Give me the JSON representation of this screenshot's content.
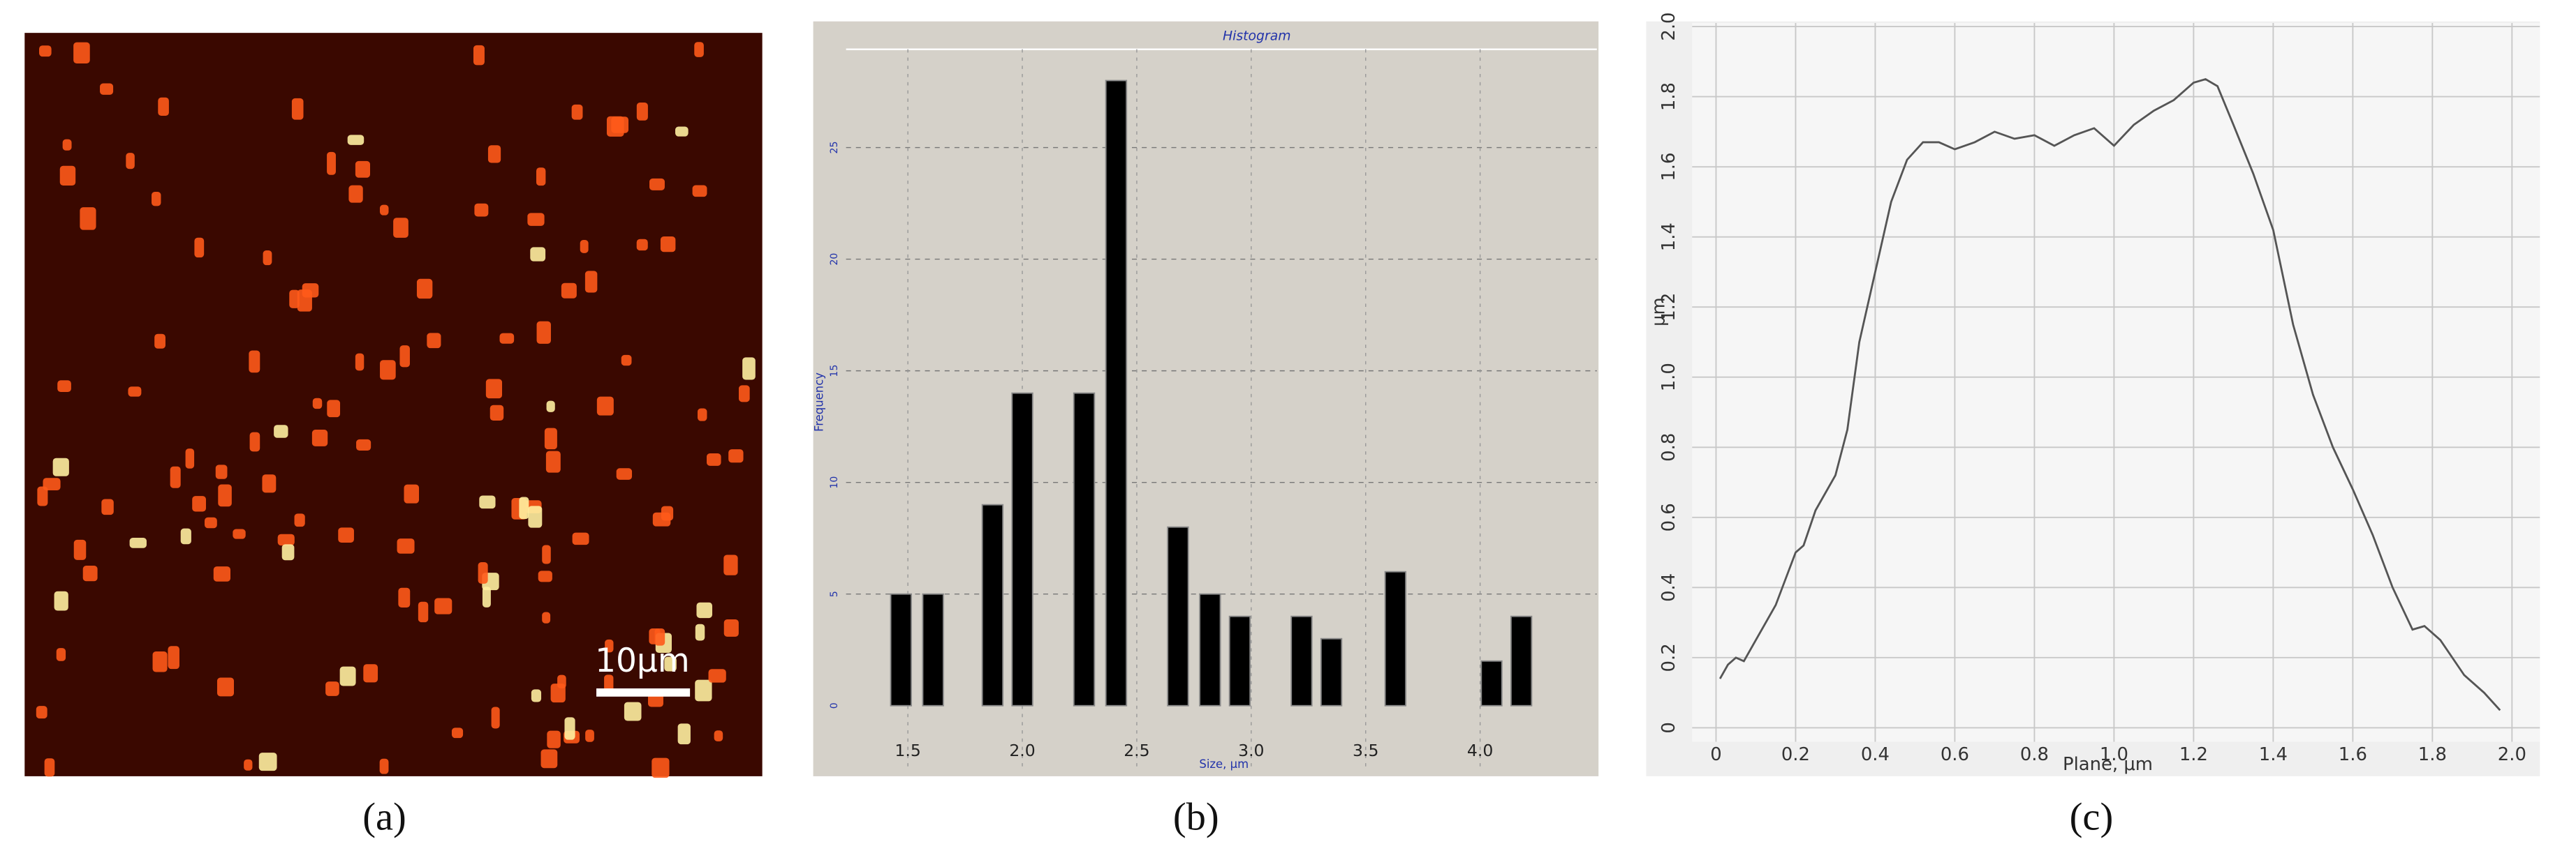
{
  "panels": {
    "a": {
      "label": "(a)",
      "scale_bar": "10μm"
    },
    "b": {
      "label": "(b)"
    },
    "c": {
      "label": "(c)"
    }
  },
  "chart_data": [
    {
      "type": "bar",
      "title": "Histogram",
      "ylabel": "Frequency",
      "xlabel": "Size, μm",
      "color": "#000000",
      "x": [
        1.47,
        1.61,
        1.87,
        2.0,
        2.27,
        2.41,
        2.68,
        2.82,
        2.95,
        3.22,
        3.35,
        3.63,
        4.05,
        4.18
      ],
      "values": [
        5,
        5,
        9,
        14,
        14,
        28,
        8,
        5,
        4,
        4,
        3,
        6,
        2,
        4
      ],
      "xlim": [
        1.23,
        4.51
      ],
      "ylim": [
        0,
        29.4
      ],
      "xticks": [
        1.5,
        {
          "value": 2,
          "label": "2.0"
        },
        2.5,
        {
          "value": 3,
          "label": "3.0"
        },
        3.5,
        {
          "value": 4,
          "label": "4.0"
        }
      ],
      "yticks": [
        0,
        5,
        10,
        15,
        20,
        25
      ],
      "grid": true
    },
    {
      "type": "line",
      "ylabel": "μm",
      "xlabel": "Plane, μm",
      "color": "#555555",
      "x": [
        0.01,
        0.03,
        0.05,
        0.07,
        0.1,
        0.15,
        0.2,
        0.22,
        0.25,
        0.3,
        0.33,
        0.36,
        0.4,
        0.44,
        0.48,
        0.52,
        0.56,
        0.6,
        0.65,
        0.7,
        0.75,
        0.8,
        0.85,
        0.9,
        0.95,
        1.0,
        1.05,
        1.1,
        1.15,
        1.2,
        1.23,
        1.26,
        1.3,
        1.35,
        1.4,
        1.45,
        1.5,
        1.55,
        1.6,
        1.65,
        1.7,
        1.75,
        1.78,
        1.82,
        1.88,
        1.93,
        1.97
      ],
      "values": [
        0.14,
        0.18,
        0.2,
        0.19,
        0.25,
        0.35,
        0.5,
        0.52,
        0.62,
        0.72,
        0.85,
        1.1,
        1.3,
        1.5,
        1.62,
        1.67,
        1.67,
        1.65,
        1.67,
        1.7,
        1.68,
        1.69,
        1.66,
        1.69,
        1.71,
        1.66,
        1.72,
        1.76,
        1.79,
        1.84,
        1.85,
        1.83,
        1.72,
        1.58,
        1.42,
        1.15,
        0.95,
        0.8,
        0.68,
        0.55,
        0.4,
        0.28,
        0.29,
        0.25,
        0.15,
        0.1,
        0.05
      ],
      "xlim": [
        -0.06,
        2.07
      ],
      "ylim": [
        -0.04,
        2.01
      ],
      "xticks": [
        0,
        0.2,
        0.4,
        0.6,
        0.8,
        {
          "value": 1,
          "label": "1.0"
        },
        1.2,
        1.4,
        1.6,
        1.8,
        {
          "value": 2,
          "label": "2.0"
        }
      ],
      "yticks": [
        0,
        0.2,
        0.4,
        0.6,
        0.8,
        {
          "value": 1,
          "label": "1.0"
        },
        1.2,
        1.4,
        1.6,
        1.8,
        {
          "value": 2,
          "label": "2.0"
        }
      ],
      "grid": true
    }
  ]
}
